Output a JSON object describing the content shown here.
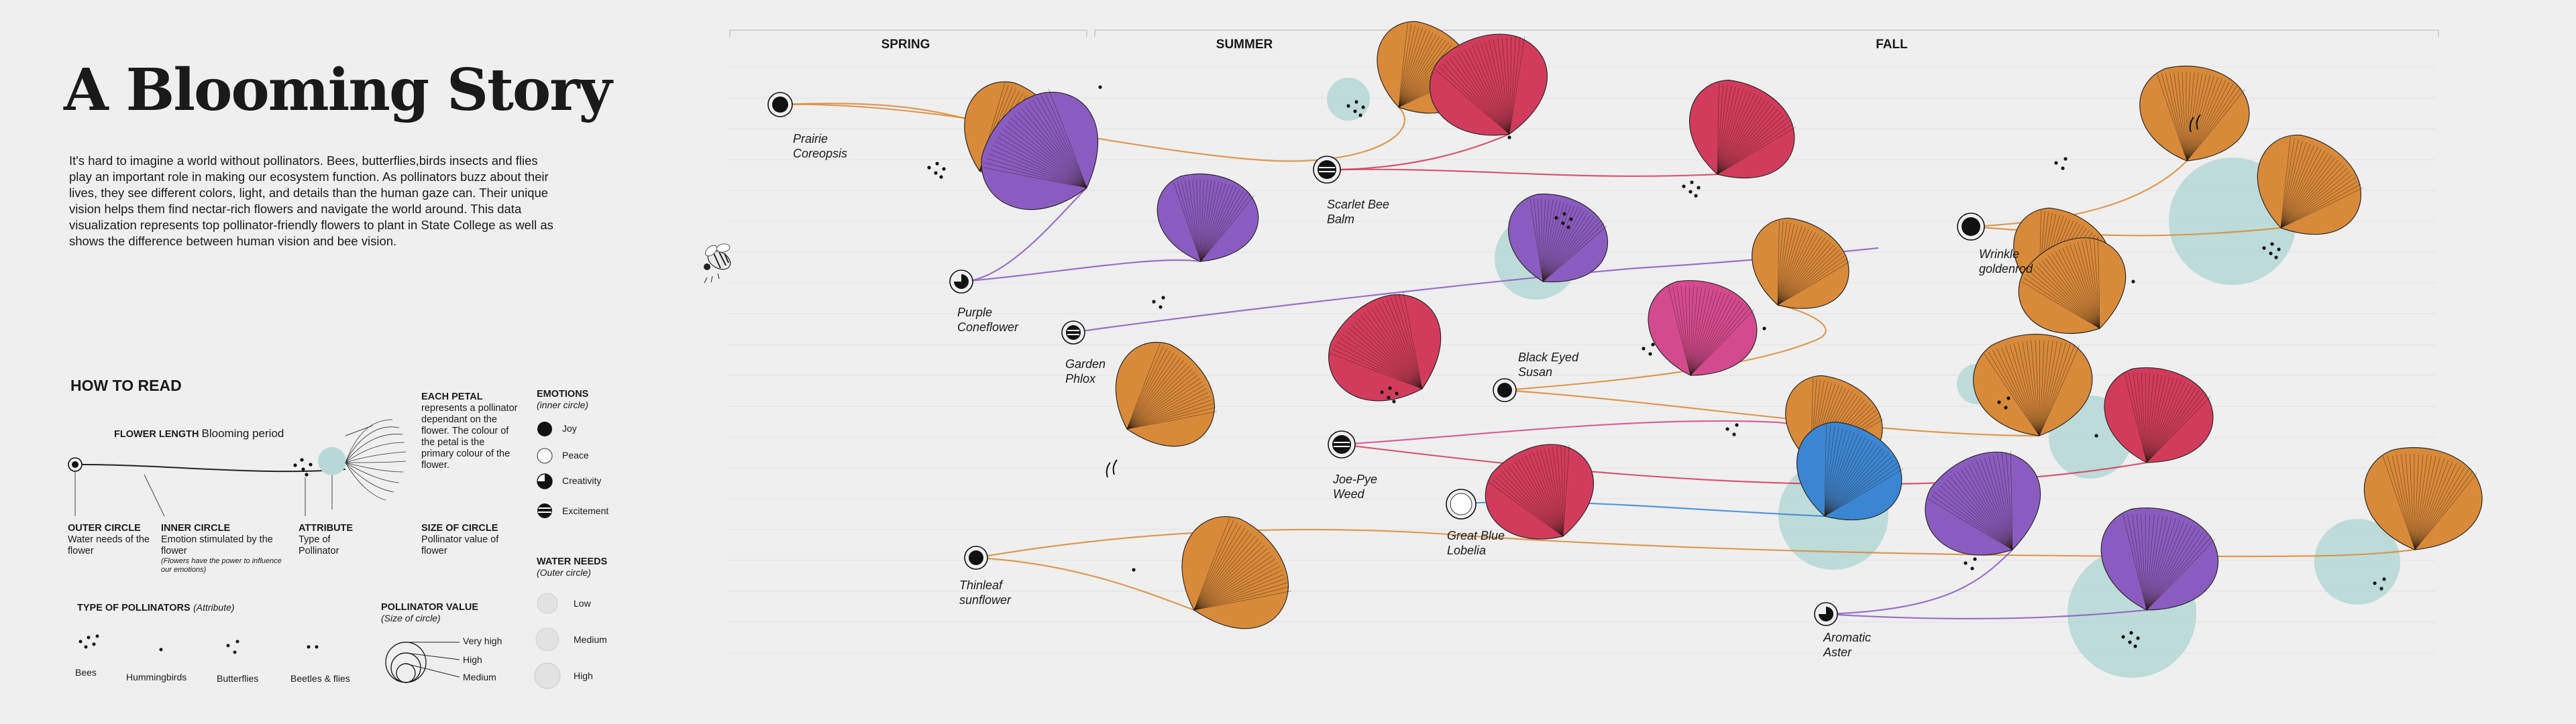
{
  "title": "A Blooming Story",
  "intro": "It's hard to imagine a world without pollinators. Bees, butterflies,birds insects and flies play an important role in making our ecosystem function. As pollinators buzz about their lives, they see different colors, light, and details than the human gaze can. Their unique vision helps them find nectar-rich flowers and navigate the world around. This data visualization represents top pollinator-friendly flowers to plant in State College as well as shows the difference between human vision and bee vision.",
  "how_to_read": {
    "heading": "HOW TO READ",
    "flower_length_label": "FLOWER LENGTH",
    "flower_length_desc": "Blooming period",
    "each_petal_title": "EACH PETAL",
    "each_petal_desc": "represents a pollinator dependant on the flower. The colour of the petal is the primary colour of the flower.",
    "outer_circle_title": "OUTER CIRCLE",
    "outer_circle_desc": "Water needs of the flower",
    "inner_circle_title": "INNER CIRCLE",
    "inner_circle_desc": "Emotion stimulated by the flower",
    "inner_circle_note": "(Flowers have the power to influence our emotions)",
    "attribute_title": "ATTRIBUTE",
    "attribute_desc": "Type of Pollinator",
    "size_title": "SIZE OF CIRCLE",
    "size_desc": "Pollinator value of flower"
  },
  "emotions": {
    "title": "EMOTIONS",
    "subtitle": "(inner circle)",
    "items": [
      "Joy",
      "Peace",
      "Creativity",
      "Excitement"
    ]
  },
  "water_needs": {
    "title": "WATER NEEDS",
    "subtitle": "(Outer circle)",
    "items": [
      "Low",
      "Medium",
      "High"
    ]
  },
  "pollinators": {
    "title": "TYPE OF POLLINATORS",
    "subtitle": "(Attribute)",
    "items": [
      "Bees",
      "Hummingbirds",
      "Butterflies",
      "Beetles & flies"
    ]
  },
  "pollinator_value": {
    "title": "POLLINATOR VALUE",
    "subtitle": "(Size of circle)",
    "items": [
      "Very high",
      "High",
      "Medium"
    ]
  },
  "seasons": [
    "SPRING",
    "SUMMER",
    "FALL"
  ],
  "colors": {
    "orange": "#d88a3a",
    "purple": "#8a5cc0",
    "red": "#d23c5c",
    "pink": "#d44a8e",
    "blue": "#3b86d2",
    "teal": "#b7d8d6"
  },
  "flowers": [
    {
      "name": "Prairie Coreopsis",
      "emotion": "Joy",
      "color": "orange"
    },
    {
      "name": "Purple Coneflower",
      "emotion": "Creativity",
      "color": "purple"
    },
    {
      "name": "Garden Phlox",
      "emotion": "Excitement",
      "color": "purple"
    },
    {
      "name": "Scarlet Bee Balm",
      "emotion": "Excitement",
      "color": "red"
    },
    {
      "name": "Black Eyed Susan",
      "emotion": "Joy",
      "color": "orange"
    },
    {
      "name": "Joe-Pye Weed",
      "emotion": "Excitement",
      "color": "pink"
    },
    {
      "name": "Great Blue Lobelia",
      "emotion": "Peace",
      "color": "blue"
    },
    {
      "name": "Thinleaf sunflower",
      "emotion": "Joy",
      "color": "orange"
    },
    {
      "name": "Wrinkle goldenrod",
      "emotion": "Joy",
      "color": "orange"
    },
    {
      "name": "Aromatic Aster",
      "emotion": "Creativity",
      "color": "purple"
    }
  ]
}
